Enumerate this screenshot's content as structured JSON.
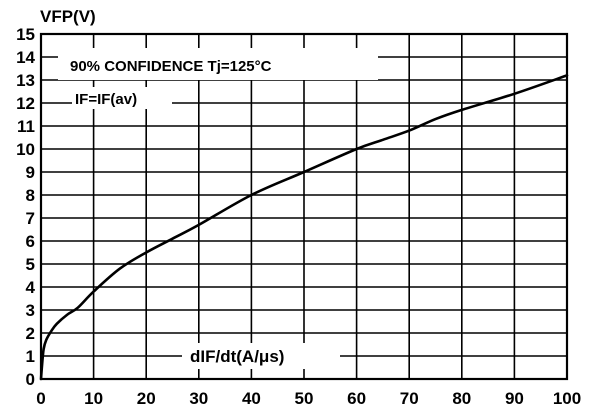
{
  "chart_data": {
    "type": "line",
    "ylabel": "VFP(V)",
    "xlabel": "dIF/dt(A/μs)",
    "xlim": [
      0,
      100
    ],
    "ylim": [
      0,
      15
    ],
    "x_ticks": [
      "0",
      "10",
      "20",
      "30",
      "40",
      "50",
      "60",
      "70",
      "80",
      "90",
      "100"
    ],
    "y_ticks": [
      "0",
      "1",
      "2",
      "3",
      "4",
      "5",
      "6",
      "7",
      "8",
      "9",
      "10",
      "11",
      "12",
      "13",
      "14",
      "15"
    ],
    "grid": true,
    "annotations": [
      "90% CONFIDENCE Tj=125°C",
      "IF=IF(av)"
    ],
    "series": [
      {
        "x": [
          0,
          0.2,
          0.5,
          1,
          2,
          3,
          5,
          7,
          10,
          15,
          20,
          25,
          30,
          40,
          50,
          60,
          65,
          70,
          75,
          80,
          90,
          100
        ],
        "y": [
          0,
          0.6,
          1.3,
          1.7,
          2.1,
          2.4,
          2.8,
          3.1,
          3.8,
          4.8,
          5.5,
          6.1,
          6.7,
          8.0,
          9.0,
          10.0,
          10.4,
          10.8,
          11.3,
          11.7,
          12.4,
          13.2
        ]
      }
    ]
  }
}
